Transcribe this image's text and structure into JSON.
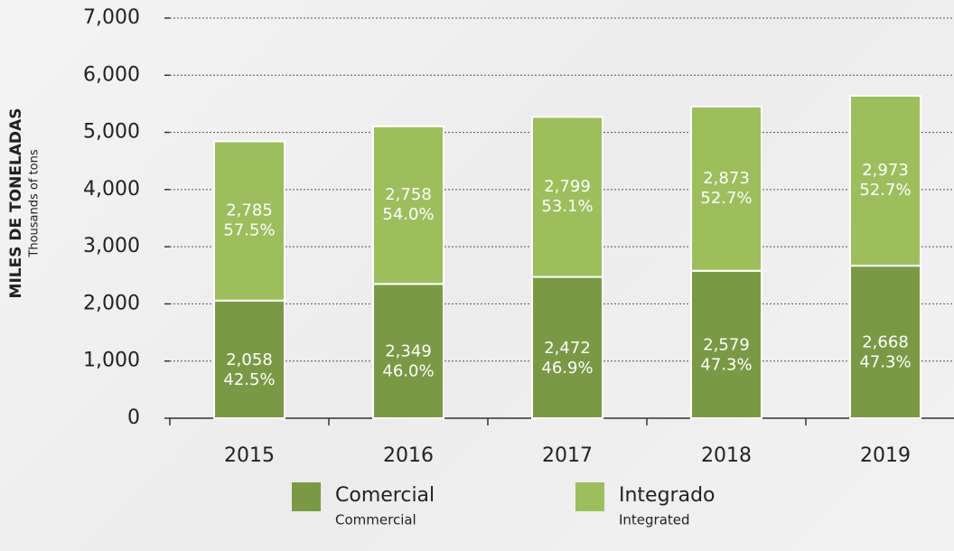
{
  "chart_data": {
    "type": "stacked_bar",
    "y_label": "MILES DE TONELADAS",
    "y_label_en": "Thousands of tons",
    "categories": [
      "2015",
      "2016",
      "2017",
      "2018",
      "2019"
    ],
    "series": [
      {
        "name": "Comercial",
        "name_en": "Commercial",
        "color": "#7a9945",
        "values": [
          2058,
          2349,
          2472,
          2579,
          2668
        ],
        "value_labels": [
          "2,058",
          "2,349",
          "2,472",
          "2,579",
          "2,668"
        ],
        "share_labels": [
          "42.5%",
          "46.0%",
          "46.9%",
          "47.3%",
          "47.3%"
        ]
      },
      {
        "name": "Integrado",
        "name_en": "Integrated",
        "color": "#9cbf5c",
        "values": [
          2785,
          2758,
          2799,
          2873,
          2973
        ],
        "value_labels": [
          "2,785",
          "2,758",
          "2,799",
          "2,873",
          "2,973"
        ],
        "share_labels": [
          "57.5%",
          "54.0%",
          "53.1%",
          "52.7%",
          "52.7%"
        ]
      }
    ],
    "ylim": [
      0,
      7000
    ],
    "yticks": [
      0,
      {
        "value": 1000,
        "label": "1,000"
      },
      {
        "value": 2000,
        "label": "2,000"
      },
      {
        "value": 3000,
        "label": "3,000"
      },
      {
        "value": 4000,
        "label": "4,000"
      },
      {
        "value": 5000,
        "label": "5,000"
      },
      {
        "value": 6000,
        "label": "6,000"
      },
      {
        "value": 7000,
        "label": "7,000"
      }
    ],
    "grid": true
  }
}
